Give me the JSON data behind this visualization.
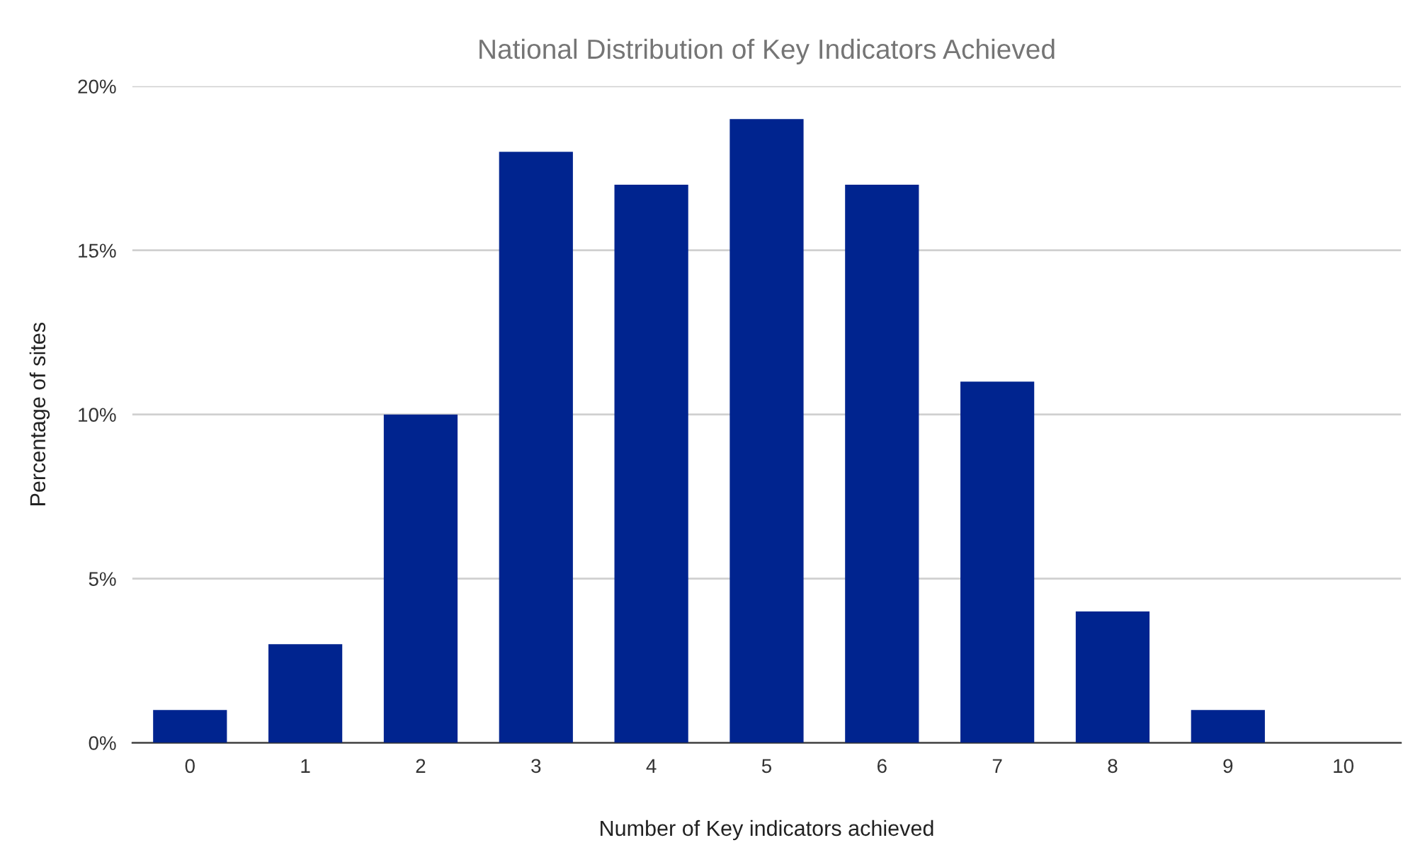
{
  "chart_data": {
    "type": "bar",
    "title": "National Distribution of Key Indicators Achieved",
    "xlabel": "Number of Key indicators achieved",
    "ylabel": "Percentage of sites",
    "categories": [
      "0",
      "1",
      "2",
      "3",
      "4",
      "5",
      "6",
      "7",
      "8",
      "9",
      "10"
    ],
    "values": [
      1,
      3,
      10,
      18,
      17,
      19,
      17,
      11,
      4,
      1,
      0
    ],
    "color": "#00248f",
    "ylim": [
      0,
      20
    ],
    "yticks": [
      {
        "value": 0,
        "label": "0%"
      },
      {
        "value": 5,
        "label": "5%"
      },
      {
        "value": 10,
        "label": "10%"
      },
      {
        "value": 15,
        "label": "15%"
      },
      {
        "value": 20,
        "label": "20%"
      }
    ],
    "grid": "y",
    "legend": false
  }
}
